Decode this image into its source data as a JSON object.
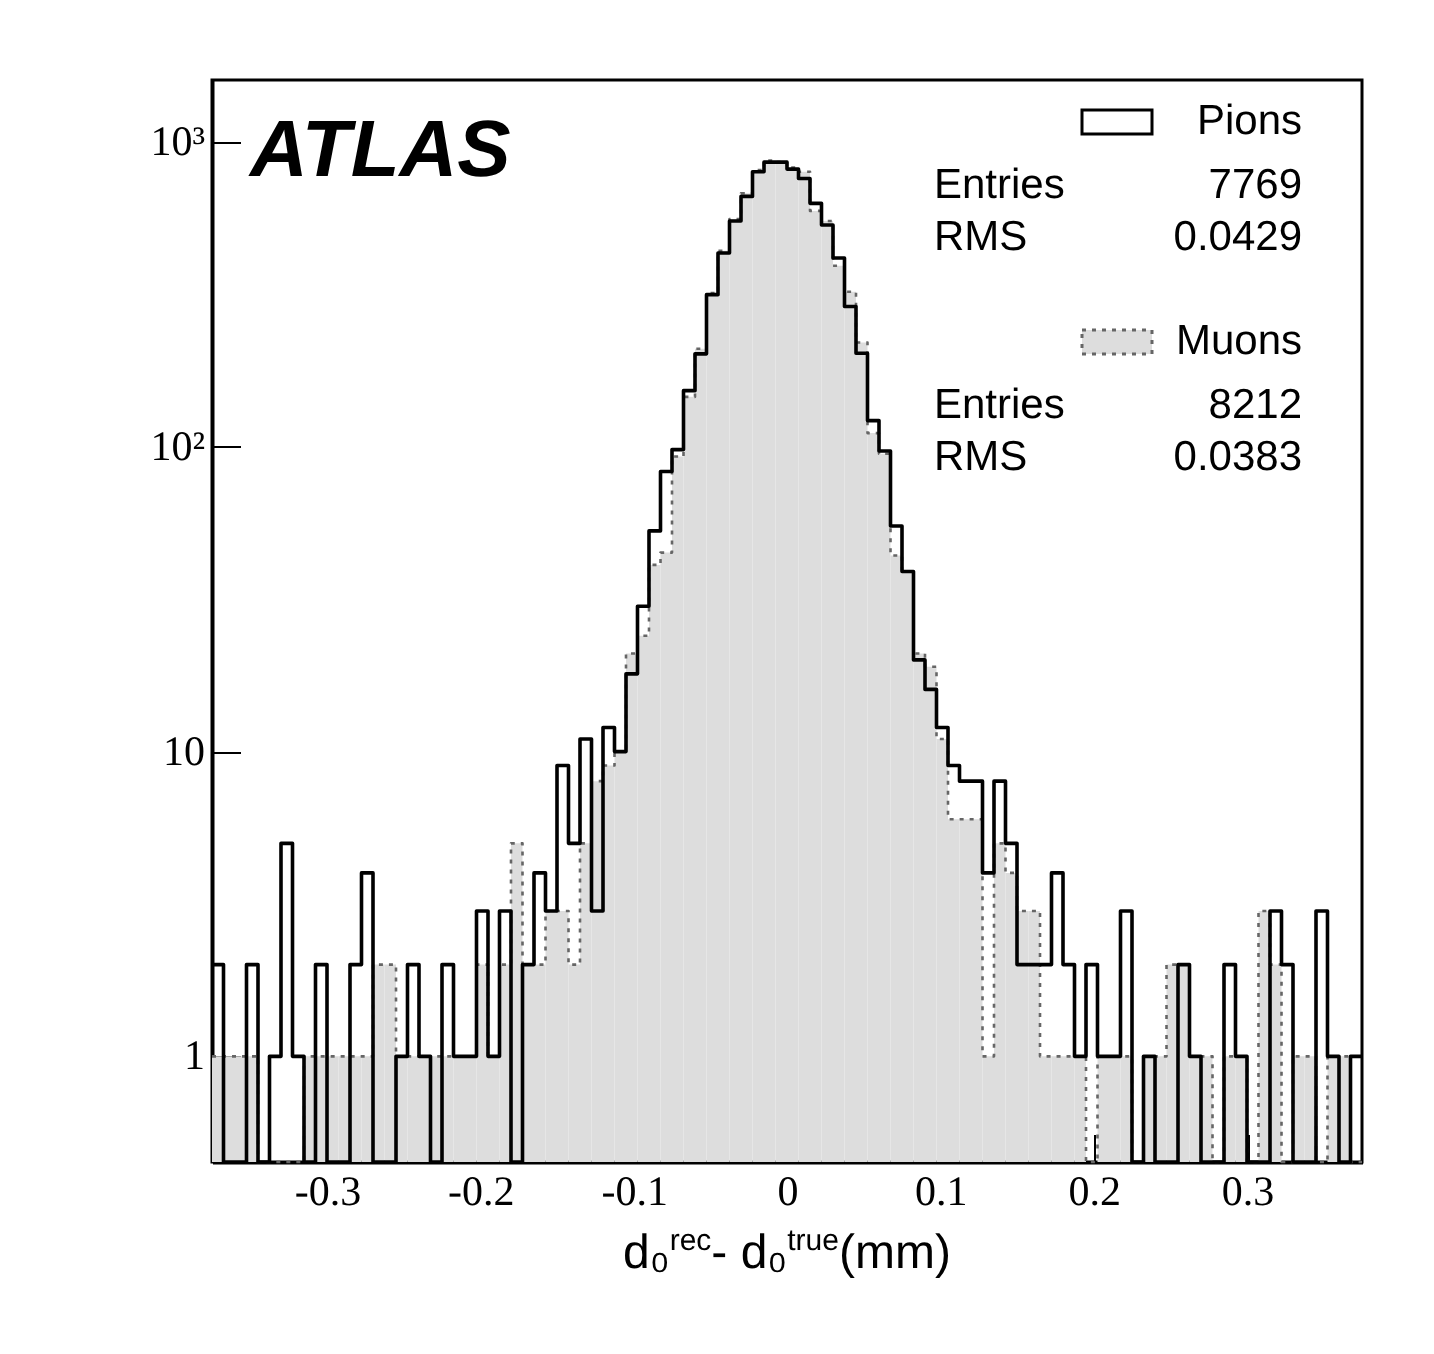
{
  "chart_data": {
    "type": "histogram",
    "xlabel": "d₀$^{rec}$- d₀$^{true}$(mm)",
    "annotations": [
      "ATLAS",
      "Entries 7769",
      "RMS 0.0429",
      "Entries 8212",
      "RMS 0.0383"
    ],
    "bins": [
      -0.375,
      -0.3675,
      -0.36,
      -0.3525,
      -0.345,
      -0.3375,
      -0.33,
      -0.3225,
      -0.315,
      -0.3075,
      -0.3,
      -0.2925,
      -0.285,
      -0.2775,
      -0.27,
      -0.2625,
      -0.255,
      -0.2475,
      -0.24,
      -0.2325,
      -0.225,
      -0.2175,
      -0.21,
      -0.2025,
      -0.195,
      -0.1875,
      -0.18,
      -0.1725,
      -0.165,
      -0.1575,
      -0.15,
      -0.1425,
      -0.135,
      -0.1275,
      -0.12,
      -0.1125,
      -0.105,
      -0.0975,
      -0.09,
      -0.0825,
      -0.075,
      -0.0675,
      -0.06,
      -0.0525,
      -0.045,
      -0.0375,
      -0.03,
      -0.0225,
      -0.015,
      -0.0075,
      0,
      0.0075,
      0.015,
      0.0225,
      0.03,
      0.0375,
      0.045,
      0.0525,
      0.06,
      0.0675,
      0.075,
      0.0825,
      0.09,
      0.0975,
      0.105,
      0.1125,
      0.12,
      0.1275,
      0.135,
      0.1425,
      0.15,
      0.1575,
      0.165,
      0.1725,
      0.18,
      0.1875,
      0.195,
      0.2025,
      0.21,
      0.2175,
      0.225,
      0.2325,
      0.24,
      0.2475,
      0.255,
      0.2625,
      0.27,
      0.2775,
      0.285,
      0.2925,
      0.3,
      0.3075,
      0.315,
      0.3225,
      0.33,
      0.3375,
      0.345,
      0.3525,
      0.36,
      0.3675,
      0.375
    ],
    "series": [
      {
        "name": "Pions",
        "color": "#000000",
        "line_style": "solid",
        "values": [
          2,
          null,
          null,
          2,
          null,
          1,
          5,
          1,
          null,
          2,
          null,
          null,
          2,
          4,
          null,
          null,
          1,
          2,
          1,
          null,
          2,
          1,
          1,
          3,
          1,
          3,
          null,
          2,
          4,
          3,
          9,
          5,
          11,
          3,
          12,
          10,
          18,
          30,
          53,
          83,
          98,
          153,
          202,
          316,
          433,
          551,
          664,
          800,
          860,
          860,
          816,
          760,
          630,
          535,
          417,
          289,
          203,
          122,
          97,
          55,
          39,
          20,
          16,
          12,
          9,
          8,
          8,
          4,
          8,
          5,
          2,
          2,
          2,
          4,
          2,
          1,
          2,
          1,
          1,
          3,
          null,
          1,
          null,
          null,
          2,
          1,
          null,
          null,
          2,
          1,
          null,
          null,
          3,
          2,
          null,
          null,
          3,
          1,
          null,
          1
        ]
      },
      {
        "name": "Muons",
        "color": "#dddddd",
        "line_style": "dotted",
        "values": [
          1,
          1,
          1,
          1,
          null,
          null,
          null,
          null,
          1,
          1,
          1,
          1,
          1,
          1,
          2,
          2,
          1,
          1,
          1,
          1,
          1,
          1,
          1,
          2,
          1,
          2,
          5,
          2,
          2,
          3,
          3,
          2,
          5,
          8,
          9,
          10,
          21,
          24,
          41,
          45,
          93,
          146,
          210,
          320,
          440,
          560,
          680,
          810,
          870,
          860,
          825,
          800,
          595,
          551,
          393,
          323,
          220,
          111,
          95,
          44,
          39,
          21,
          19,
          11,
          6,
          6,
          6,
          1,
          5,
          4,
          3,
          3,
          1,
          1,
          1,
          1,
          null,
          1,
          1,
          1,
          null,
          1,
          1,
          2,
          2,
          1,
          1,
          null,
          1,
          1,
          null,
          3,
          2,
          null,
          1,
          1,
          null,
          1,
          1,
          null
        ]
      }
    ],
    "xlim": [
      -0.375,
      0.375
    ],
    "ylim": [
      0.45,
      1600
    ],
    "log": "y",
    "xticks": [
      -0.3,
      -0.2,
      -0.1,
      0,
      0.1,
      0.2,
      0.3
    ],
    "yticks": [
      1,
      10,
      {
        "value": 100,
        "label": "10²"
      },
      {
        "value": 1000,
        "label": "10³"
      }
    ],
    "legend": "top right"
  }
}
